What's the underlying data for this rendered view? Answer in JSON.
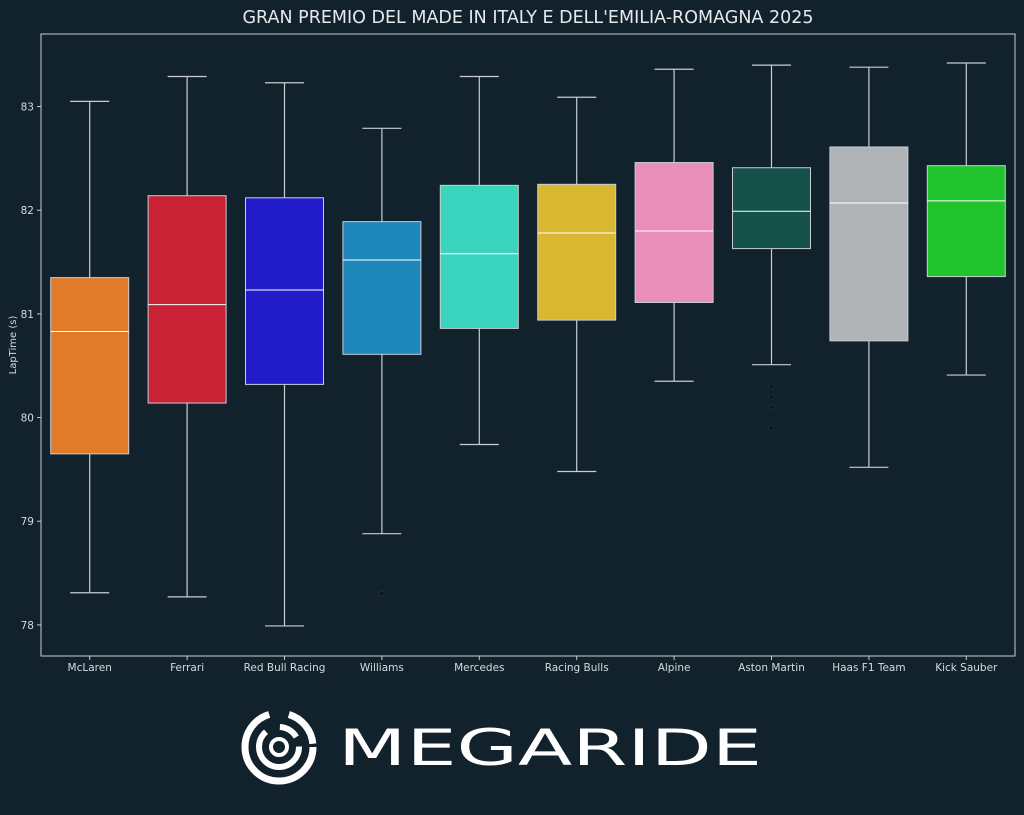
{
  "chart_data": {
    "type": "box",
    "title": "GRAN PREMIO DEL MADE IN ITALY E DELL'EMILIA-ROMAGNA 2025",
    "xlabel": "",
    "ylabel": "LapTime (s)",
    "ylim": [
      77.7,
      83.7
    ],
    "yticks": [
      78,
      79,
      80,
      81,
      82,
      83
    ],
    "grid": false,
    "categories": [
      "McLaren",
      "Ferrari",
      "Red Bull Racing",
      "Williams",
      "Mercedes",
      "Racing Bulls",
      "Alpine",
      "Aston Martin",
      "Haas F1 Team",
      "Kick Sauber"
    ],
    "boxes": [
      {
        "team": "McLaren",
        "min": 78.31,
        "q1": 79.65,
        "median": 80.83,
        "q3": 81.35,
        "max": 83.05,
        "color": "#e07b2a"
      },
      {
        "team": "Ferrari",
        "min": 78.27,
        "q1": 80.14,
        "median": 81.09,
        "q3": 82.14,
        "max": 83.29,
        "color": "#c92234"
      },
      {
        "team": "Red Bull Racing",
        "min": 77.99,
        "q1": 80.32,
        "median": 81.23,
        "q3": 82.12,
        "max": 83.23,
        "color": "#221ccb"
      },
      {
        "team": "Williams",
        "min": 78.88,
        "q1": 80.61,
        "median": 81.52,
        "q3": 81.89,
        "max": 82.79,
        "color": "#1e88bb"
      },
      {
        "team": "Mercedes",
        "min": 79.74,
        "q1": 80.86,
        "median": 81.58,
        "q3": 82.24,
        "max": 83.29,
        "color": "#3ad3be"
      },
      {
        "team": "Racing Bulls",
        "min": 79.48,
        "q1": 80.94,
        "median": 81.78,
        "q3": 82.25,
        "max": 83.09,
        "color": "#d8b830"
      },
      {
        "team": "Alpine",
        "min": 80.35,
        "q1": 81.11,
        "median": 81.8,
        "q3": 82.46,
        "max": 83.36,
        "color": "#ea8fba"
      },
      {
        "team": "Aston Martin",
        "min": 80.51,
        "q1": 81.63,
        "median": 81.99,
        "q3": 82.41,
        "max": 83.4,
        "color": "#14524a"
      },
      {
        "team": "Haas F1 Team",
        "min": 79.52,
        "q1": 80.74,
        "median": 82.07,
        "q3": 82.61,
        "max": 83.38,
        "color": "#b1b4b7"
      },
      {
        "team": "Kick Sauber",
        "min": 80.41,
        "q1": 81.36,
        "median": 82.09,
        "q3": 82.43,
        "max": 83.42,
        "color": "#22c42d"
      }
    ],
    "outliers": [
      {
        "team": "Williams",
        "values": [
          78.3
        ]
      },
      {
        "team": "Aston Martin",
        "values": [
          80.3,
          80.2,
          80.1,
          79.9
        ]
      }
    ]
  },
  "branding": {
    "logo_text": "MEGARIDE"
  },
  "colors": {
    "background": "#11222d",
    "axis": "#c9cdd1",
    "whisker": "#c9cdd1",
    "median": "#ffffff"
  }
}
